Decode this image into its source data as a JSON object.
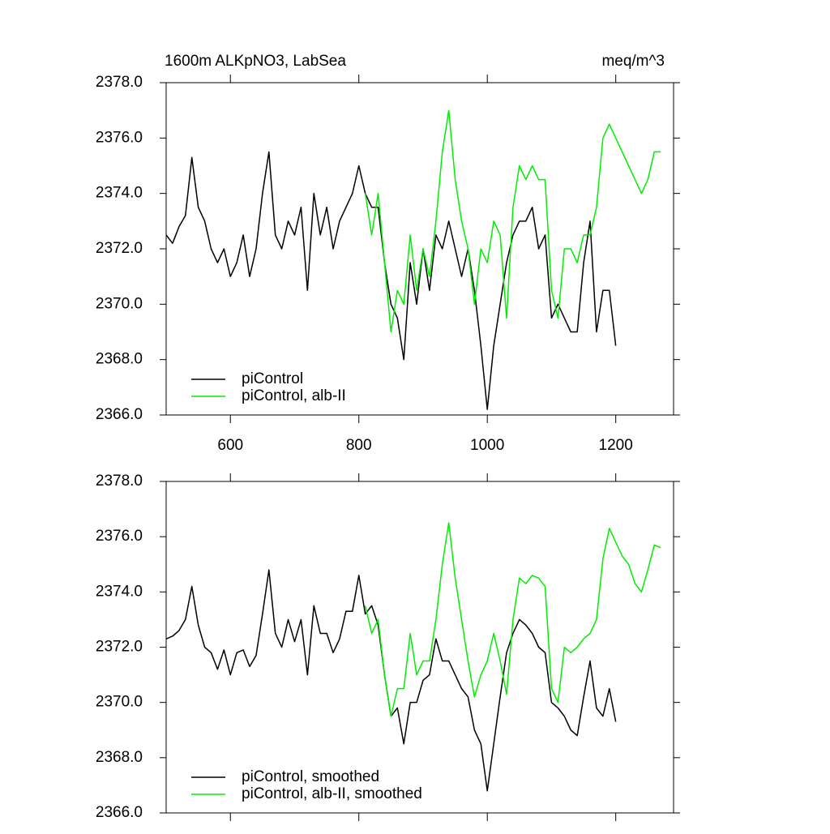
{
  "chart_data": [
    {
      "type": "line",
      "title": "1600m ALKpNO3, LabSea",
      "units": "meq/m^3",
      "legend": "lower left",
      "xlim": [
        500,
        1290
      ],
      "xticks": [
        600,
        800,
        1000,
        1200
      ],
      "ylim": [
        2366,
        2378
      ],
      "yticks": [
        {
          "value": 2366,
          "label": "2366.0"
        },
        {
          "value": 2368,
          "label": "2368.0"
        },
        {
          "value": 2370,
          "label": "2370.0"
        },
        {
          "value": 2372,
          "label": "2372.0"
        },
        {
          "value": 2374,
          "label": "2374.0"
        },
        {
          "value": 2376,
          "label": "2376.0"
        },
        {
          "value": 2378,
          "label": "2378.0"
        }
      ],
      "series": [
        {
          "name": "piControl",
          "color": "#000000",
          "x": [
            500,
            510,
            520,
            530,
            540,
            550,
            560,
            570,
            580,
            590,
            600,
            610,
            620,
            630,
            640,
            650,
            660,
            670,
            680,
            690,
            700,
            710,
            720,
            730,
            740,
            750,
            760,
            770,
            780,
            790,
            800,
            810,
            820,
            830,
            840,
            850,
            860,
            870,
            880,
            890,
            900,
            910,
            920,
            930,
            940,
            950,
            960,
            970,
            980,
            990,
            1000,
            1010,
            1020,
            1030,
            1040,
            1050,
            1060,
            1070,
            1080,
            1090,
            1100,
            1110,
            1120,
            1130,
            1140,
            1150,
            1160,
            1170,
            1180,
            1190,
            1200
          ],
          "values": [
            2372.5,
            2372.2,
            2372.8,
            2373.2,
            2375.3,
            2373.5,
            2373.0,
            2372.0,
            2371.5,
            2372.0,
            2371.0,
            2371.5,
            2372.5,
            2371.0,
            2372.0,
            2374.0,
            2375.5,
            2372.5,
            2372.0,
            2373.0,
            2372.5,
            2373.5,
            2370.5,
            2374.0,
            2372.5,
            2373.5,
            2372.0,
            2373.0,
            2373.5,
            2374.0,
            2375.0,
            2374.0,
            2373.5,
            2373.5,
            2371.5,
            2370.0,
            2369.5,
            2368.0,
            2371.5,
            2370.0,
            2372.0,
            2370.5,
            2372.5,
            2372.0,
            2373.0,
            2372.0,
            2371.0,
            2372.0,
            2370.5,
            2368.5,
            2366.2,
            2368.5,
            2370.0,
            2371.5,
            2372.5,
            2373.0,
            2373.0,
            2373.5,
            2372.0,
            2372.5,
            2369.5,
            2370.0,
            2369.5,
            2369.0,
            2369.0,
            2371.5,
            2373.0,
            2369.0,
            2370.5,
            2370.5,
            2368.5
          ]
        },
        {
          "name": "piControl, alb-II",
          "color": "#00ee00",
          "x": [
            810,
            820,
            830,
            840,
            850,
            860,
            870,
            880,
            890,
            900,
            910,
            920,
            930,
            940,
            950,
            960,
            970,
            980,
            990,
            1000,
            1010,
            1020,
            1030,
            1040,
            1050,
            1060,
            1070,
            1080,
            1090,
            1100,
            1110,
            1120,
            1130,
            1140,
            1150,
            1160,
            1170,
            1180,
            1190,
            1200,
            1210,
            1220,
            1230,
            1240,
            1250,
            1260,
            1270
          ],
          "values": [
            2374.0,
            2372.5,
            2374.0,
            2371.5,
            2369.0,
            2370.5,
            2370.0,
            2372.5,
            2370.5,
            2372.0,
            2371.0,
            2373.0,
            2375.5,
            2377.0,
            2374.5,
            2373.0,
            2372.0,
            2370.0,
            2372.0,
            2371.5,
            2373.0,
            2372.5,
            2369.5,
            2373.5,
            2375.0,
            2374.5,
            2375.0,
            2374.5,
            2374.5,
            2370.5,
            2369.5,
            2372.0,
            2372.0,
            2371.5,
            2372.5,
            2372.5,
            2373.5,
            2376.0,
            2376.5,
            2376.0,
            2375.5,
            2375.0,
            2374.5,
            2374.0,
            2374.5,
            2375.5,
            2375.5
          ]
        }
      ]
    },
    {
      "type": "line",
      "legend": "lower left",
      "xlim": [
        500,
        1290
      ],
      "xticks": [
        600,
        800,
        1000,
        1200
      ],
      "ylim": [
        2366,
        2378
      ],
      "yticks": [
        {
          "value": 2366,
          "label": "2366.0"
        },
        {
          "value": 2368,
          "label": "2368.0"
        },
        {
          "value": 2370,
          "label": "2370.0"
        },
        {
          "value": 2372,
          "label": "2372.0"
        },
        {
          "value": 2374,
          "label": "2374.0"
        },
        {
          "value": 2376,
          "label": "2376.0"
        },
        {
          "value": 2378,
          "label": "2378.0"
        }
      ],
      "series": [
        {
          "name": "piControl, smoothed",
          "color": "#000000",
          "x": [
            500,
            510,
            520,
            530,
            540,
            550,
            560,
            570,
            580,
            590,
            600,
            610,
            620,
            630,
            640,
            650,
            660,
            670,
            680,
            690,
            700,
            710,
            720,
            730,
            740,
            750,
            760,
            770,
            780,
            790,
            800,
            810,
            820,
            830,
            840,
            850,
            860,
            870,
            880,
            890,
            900,
            910,
            920,
            930,
            940,
            950,
            960,
            970,
            980,
            990,
            1000,
            1010,
            1020,
            1030,
            1040,
            1050,
            1060,
            1070,
            1080,
            1090,
            1100,
            1110,
            1120,
            1130,
            1140,
            1150,
            1160,
            1170,
            1180,
            1190,
            1200
          ],
          "values": [
            2372.3,
            2372.4,
            2372.6,
            2373.0,
            2374.2,
            2372.8,
            2372.0,
            2371.8,
            2371.2,
            2371.9,
            2371.0,
            2371.8,
            2371.9,
            2371.3,
            2371.7,
            2373.2,
            2374.8,
            2372.5,
            2372.0,
            2373.0,
            2372.2,
            2373.0,
            2371.0,
            2373.5,
            2372.5,
            2372.5,
            2371.8,
            2372.3,
            2373.3,
            2373.3,
            2374.6,
            2373.2,
            2373.5,
            2372.8,
            2371.0,
            2369.5,
            2369.8,
            2368.5,
            2370.0,
            2370.0,
            2370.8,
            2371.0,
            2372.3,
            2371.5,
            2371.5,
            2371.0,
            2370.5,
            2370.2,
            2369.0,
            2368.5,
            2366.8,
            2368.5,
            2370.2,
            2371.8,
            2372.5,
            2373.0,
            2372.8,
            2372.5,
            2372.0,
            2371.8,
            2370.0,
            2369.8,
            2369.5,
            2369.0,
            2368.8,
            2370.2,
            2371.5,
            2369.8,
            2369.5,
            2370.5,
            2369.3
          ]
        },
        {
          "name": "piControl, alb-II, smoothed",
          "color": "#00ee00",
          "x": [
            810,
            820,
            830,
            840,
            850,
            860,
            870,
            880,
            890,
            900,
            910,
            920,
            930,
            940,
            950,
            960,
            970,
            980,
            990,
            1000,
            1010,
            1020,
            1030,
            1040,
            1050,
            1060,
            1070,
            1080,
            1090,
            1100,
            1110,
            1120,
            1130,
            1140,
            1150,
            1160,
            1170,
            1180,
            1190,
            1200,
            1210,
            1220,
            1230,
            1240,
            1250,
            1260,
            1270
          ],
          "values": [
            2373.5,
            2372.5,
            2373.0,
            2371.0,
            2369.5,
            2370.5,
            2370.5,
            2372.5,
            2371.0,
            2371.5,
            2371.5,
            2373.0,
            2375.0,
            2376.5,
            2374.5,
            2373.0,
            2371.5,
            2370.2,
            2371.0,
            2371.5,
            2372.5,
            2371.5,
            2370.3,
            2373.0,
            2374.5,
            2374.3,
            2374.6,
            2374.5,
            2374.2,
            2370.5,
            2370.0,
            2372.0,
            2371.8,
            2372.0,
            2372.3,
            2372.5,
            2373.0,
            2375.2,
            2376.3,
            2375.8,
            2375.3,
            2375.0,
            2374.3,
            2374.0,
            2374.8,
            2375.7,
            2375.6
          ]
        }
      ]
    }
  ]
}
